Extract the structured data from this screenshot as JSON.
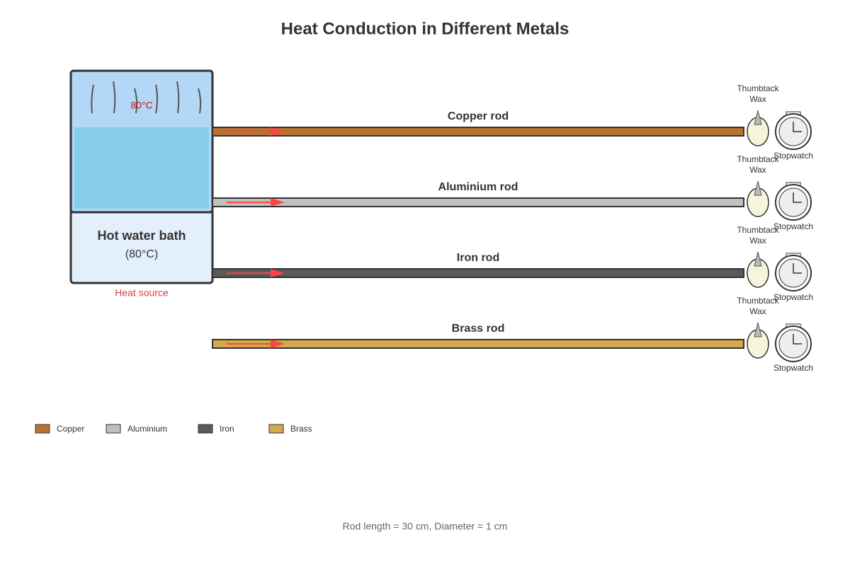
{
  "title": "Heat Conduction in Different Metals",
  "bath": {
    "temperature": "80°C",
    "label": "Hot water bath",
    "sublabel": "(80°C)",
    "caption": "Heat source"
  },
  "rods": [
    {
      "label": "Copper rod",
      "color": "#b87333",
      "wax_label": [
        "Thumbtack",
        "Wax"
      ],
      "timer_label": "Stopwatch"
    },
    {
      "label": "Aluminium rod",
      "color": "#c0c0c0",
      "wax_label": [
        "Thumbtack",
        "Wax"
      ],
      "timer_label": "Stopwatch"
    },
    {
      "label": "Iron rod",
      "color": "#5a5a5a",
      "wax_label": [
        "Thumbtack",
        "Wax"
      ],
      "timer_label": "Stopwatch"
    },
    {
      "label": "Brass rod",
      "color": "#d4a84b",
      "wax_label": [
        "Thumbtack",
        "Wax"
      ],
      "timer_label": "Stopwatch"
    }
  ],
  "legend": [
    "Copper",
    "Aluminium",
    "Iron",
    "Brass"
  ],
  "footnote": "Rod length = 30 cm, Diameter = 1 cm"
}
